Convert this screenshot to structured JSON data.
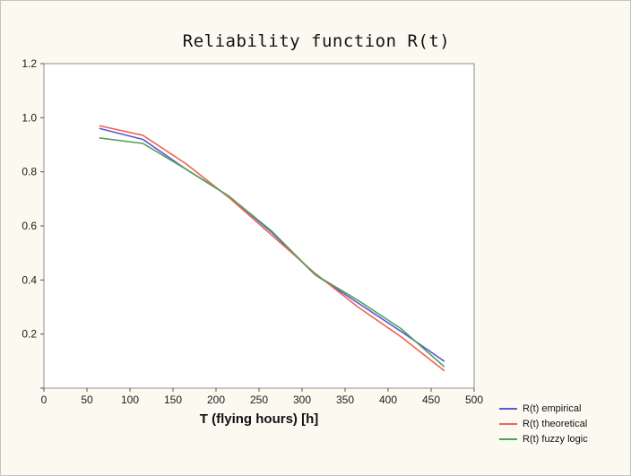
{
  "chart_data": {
    "type": "line",
    "title": "Reliability function R(t)",
    "xlabel": "T (flying hours) [h]",
    "ylabel": "",
    "xlim": [
      0,
      500
    ],
    "ylim": [
      0,
      1.2
    ],
    "xticks": [
      0,
      50,
      100,
      150,
      200,
      250,
      300,
      350,
      400,
      450,
      500
    ],
    "yticks": [
      0,
      0.2,
      0.4,
      0.6,
      0.8,
      1.0,
      1.2
    ],
    "grid": false,
    "legend_position": "bottom-right-outside",
    "x": [
      65,
      115,
      165,
      215,
      265,
      315,
      365,
      415,
      465
    ],
    "series": [
      {
        "name": "R(t) empirical",
        "color": "#5a5ad6",
        "values": [
          0.96,
          0.92,
          0.81,
          0.71,
          0.575,
          0.42,
          0.315,
          0.21,
          0.1
        ]
      },
      {
        "name": "R(t) theoretical",
        "color": "#ef6450",
        "values": [
          0.97,
          0.935,
          0.83,
          0.705,
          0.565,
          0.425,
          0.3,
          0.19,
          0.065
        ]
      },
      {
        "name": "R(t) fuzzy logic",
        "color": "#53a158",
        "values": [
          0.925,
          0.905,
          0.81,
          0.71,
          0.58,
          0.42,
          0.325,
          0.22,
          0.08
        ]
      }
    ]
  },
  "frame": {
    "plot_background": "#ffffff",
    "frame_color": "#8f8f8f",
    "page_background": "#fcf9f1"
  }
}
